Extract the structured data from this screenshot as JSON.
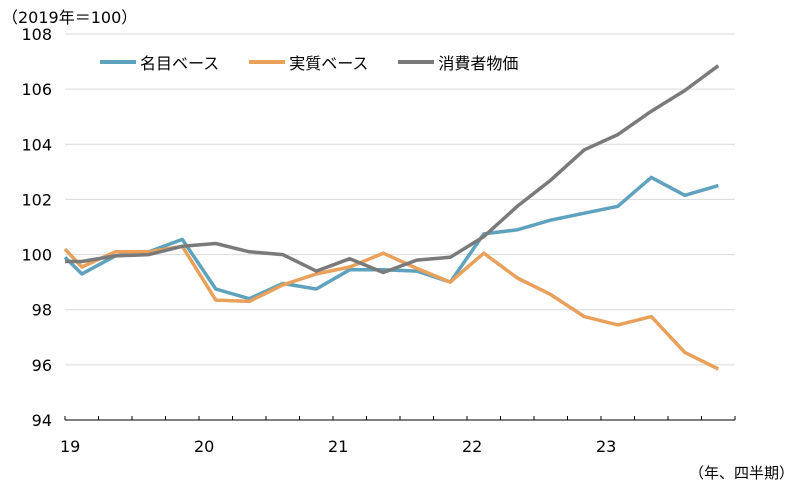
{
  "chart_data": {
    "type": "line",
    "title": "",
    "unit_label": "（2019年＝100）",
    "xlabel": "（年、四半期）",
    "ylabel": "",
    "ylim": [
      94,
      108
    ],
    "yticks": [
      94,
      96,
      98,
      100,
      102,
      104,
      106,
      108
    ],
    "grid": true,
    "legend_position": "top-left",
    "x_tick_labels": [
      "19",
      "20",
      "21",
      "22",
      "23"
    ],
    "x": [
      "2018Q4",
      "2019Q1",
      "2019Q2",
      "2019Q3",
      "2019Q4",
      "2020Q1",
      "2020Q2",
      "2020Q3",
      "2020Q4",
      "2021Q1",
      "2021Q2",
      "2021Q3",
      "2021Q4",
      "2022Q1",
      "2022Q2",
      "2022Q3",
      "2022Q4",
      "2023Q1",
      "2023Q2",
      "2023Q3",
      "2023Q4"
    ],
    "series": [
      {
        "name": "名目ベース",
        "color": "#5fa2be",
        "values": [
          99.9,
          99.3,
          99.95,
          100.1,
          100.55,
          98.75,
          98.4,
          98.95,
          98.75,
          99.45,
          99.45,
          99.4,
          99.0,
          100.75,
          100.9,
          101.25,
          101.5,
          101.75,
          102.8,
          102.15,
          102.5
        ]
      },
      {
        "name": "実質ベース",
        "color": "#e9a05b",
        "values": [
          100.2,
          99.55,
          100.1,
          100.1,
          100.3,
          98.35,
          98.3,
          98.9,
          99.3,
          99.55,
          100.05,
          99.5,
          99.0,
          100.05,
          99.15,
          98.55,
          97.75,
          97.45,
          97.75,
          96.45,
          95.85
        ]
      },
      {
        "name": "消費者物価",
        "color": "#7a7a7a",
        "values": [
          99.75,
          99.75,
          99.95,
          100.0,
          100.3,
          100.4,
          100.1,
          100.0,
          99.4,
          99.85,
          99.35,
          99.8,
          99.9,
          100.65,
          101.75,
          102.7,
          103.8,
          104.35,
          105.2,
          105.95,
          106.85
        ]
      }
    ]
  }
}
